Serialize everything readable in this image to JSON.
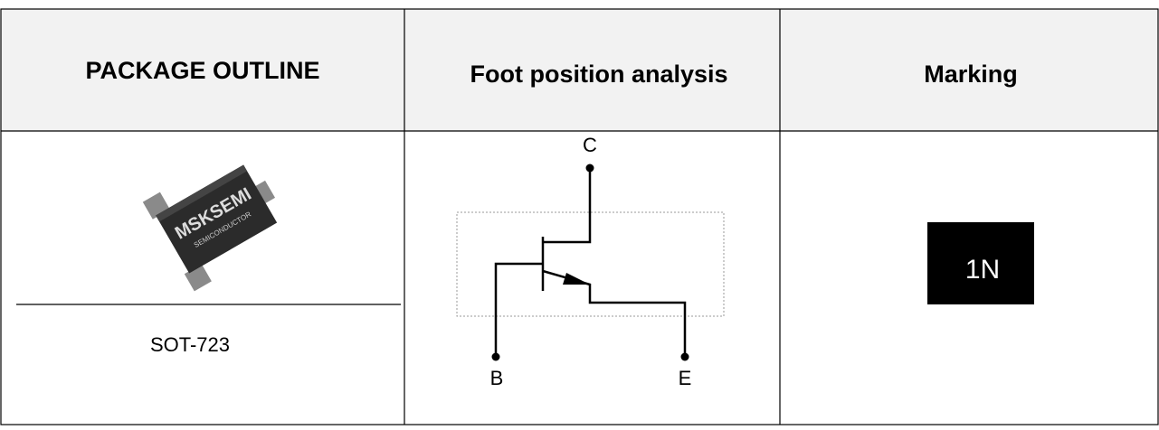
{
  "table": {
    "headers": [
      "PACKAGE OUTLINE",
      "Foot position analysis",
      "Marking"
    ],
    "package": {
      "brand": "MSKSEMI",
      "maker": "SEMICONDUCTOR",
      "name": "SOT-723"
    },
    "diagram": {
      "pins": [
        "C",
        "B",
        "E"
      ]
    },
    "marking": "1N"
  }
}
